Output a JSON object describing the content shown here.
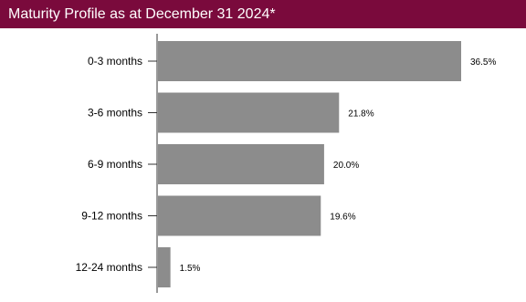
{
  "header": {
    "title": "Maturity Profile as at December 31 2024*",
    "background": "#7a0a3c"
  },
  "chart_data": {
    "type": "bar",
    "orientation": "horizontal",
    "categories": [
      "0-3 months",
      "3-6 months",
      "6-9 months",
      "9-12 months",
      "12-24 months"
    ],
    "values": [
      36.5,
      21.8,
      20.0,
      19.6,
      1.5
    ],
    "value_labels": [
      "36.5%",
      "21.8%",
      "20.0%",
      "19.6%",
      "1.5%"
    ],
    "title": "Maturity Profile as at December 31 2024*",
    "xlabel": "",
    "ylabel": "",
    "xlim": [
      0,
      40
    ],
    "grid": false,
    "bar_color": "#8c8c8c",
    "axis_color": "#999999"
  }
}
